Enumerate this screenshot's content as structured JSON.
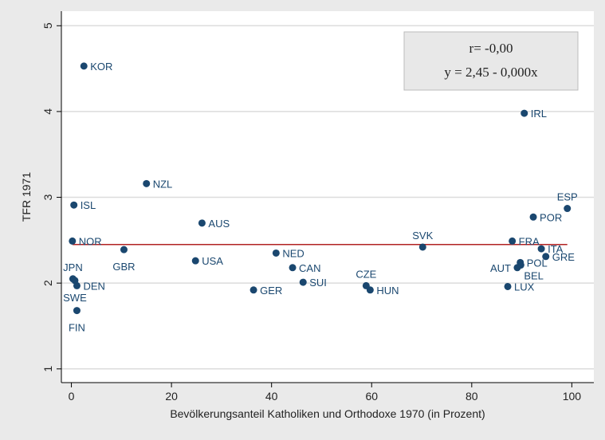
{
  "chart_data": {
    "type": "scatter",
    "x_label": "Bevölkerungsanteil Katholiken und Orthodoxe 1970 (in Prozent)",
    "y_label": "TFR 1971",
    "annotations": [
      "r= -0,00",
      "y = 2,45 - 0,000x"
    ],
    "series": [
      {
        "color": "#1a476f",
        "labels": [
          "KOR",
          "IRL",
          "NZL",
          "ISL",
          "AUS",
          "ESP",
          "POR",
          "NOR",
          "FRA",
          "SVK",
          "ITA",
          "GBR",
          "NED",
          "GRE",
          "USA",
          "POL",
          "CAN",
          "BEL",
          "AUT",
          "JPN",
          "SUI",
          "CZE",
          "DEN",
          "SWE",
          "LUX",
          "HUN",
          "GER",
          "FIN"
        ],
        "x": [
          2.5,
          90.5,
          15,
          0.5,
          26.1,
          99.1,
          92.3,
          0.2,
          88.1,
          70.2,
          93.9,
          10.5,
          40.9,
          94.8,
          24.8,
          89.7,
          44.2,
          89.8,
          89.1,
          0.3,
          46.3,
          58.9,
          1.1,
          0.7,
          87.2,
          59.7,
          36.4,
          1.1
        ],
        "values": [
          4.53,
          3.98,
          3.16,
          2.91,
          2.7,
          2.87,
          2.77,
          2.49,
          2.49,
          2.42,
          2.4,
          2.39,
          2.35,
          2.31,
          2.26,
          2.24,
          2.18,
          2.21,
          2.18,
          2.05,
          2.01,
          1.97,
          1.97,
          2.03,
          1.96,
          1.92,
          1.92,
          1.68
        ]
      }
    ],
    "fit_line": {
      "color": "#b22222",
      "x": [
        0.2,
        99.1
      ],
      "values": [
        2.45,
        2.45
      ]
    },
    "xlim": [
      -2,
      104.4
    ],
    "ylim": [
      0.84,
      5.17
    ],
    "xticks": [
      0,
      20,
      40,
      60,
      80,
      100
    ],
    "yticks": [
      1,
      2,
      3,
      4,
      5
    ],
    "grid": true
  }
}
